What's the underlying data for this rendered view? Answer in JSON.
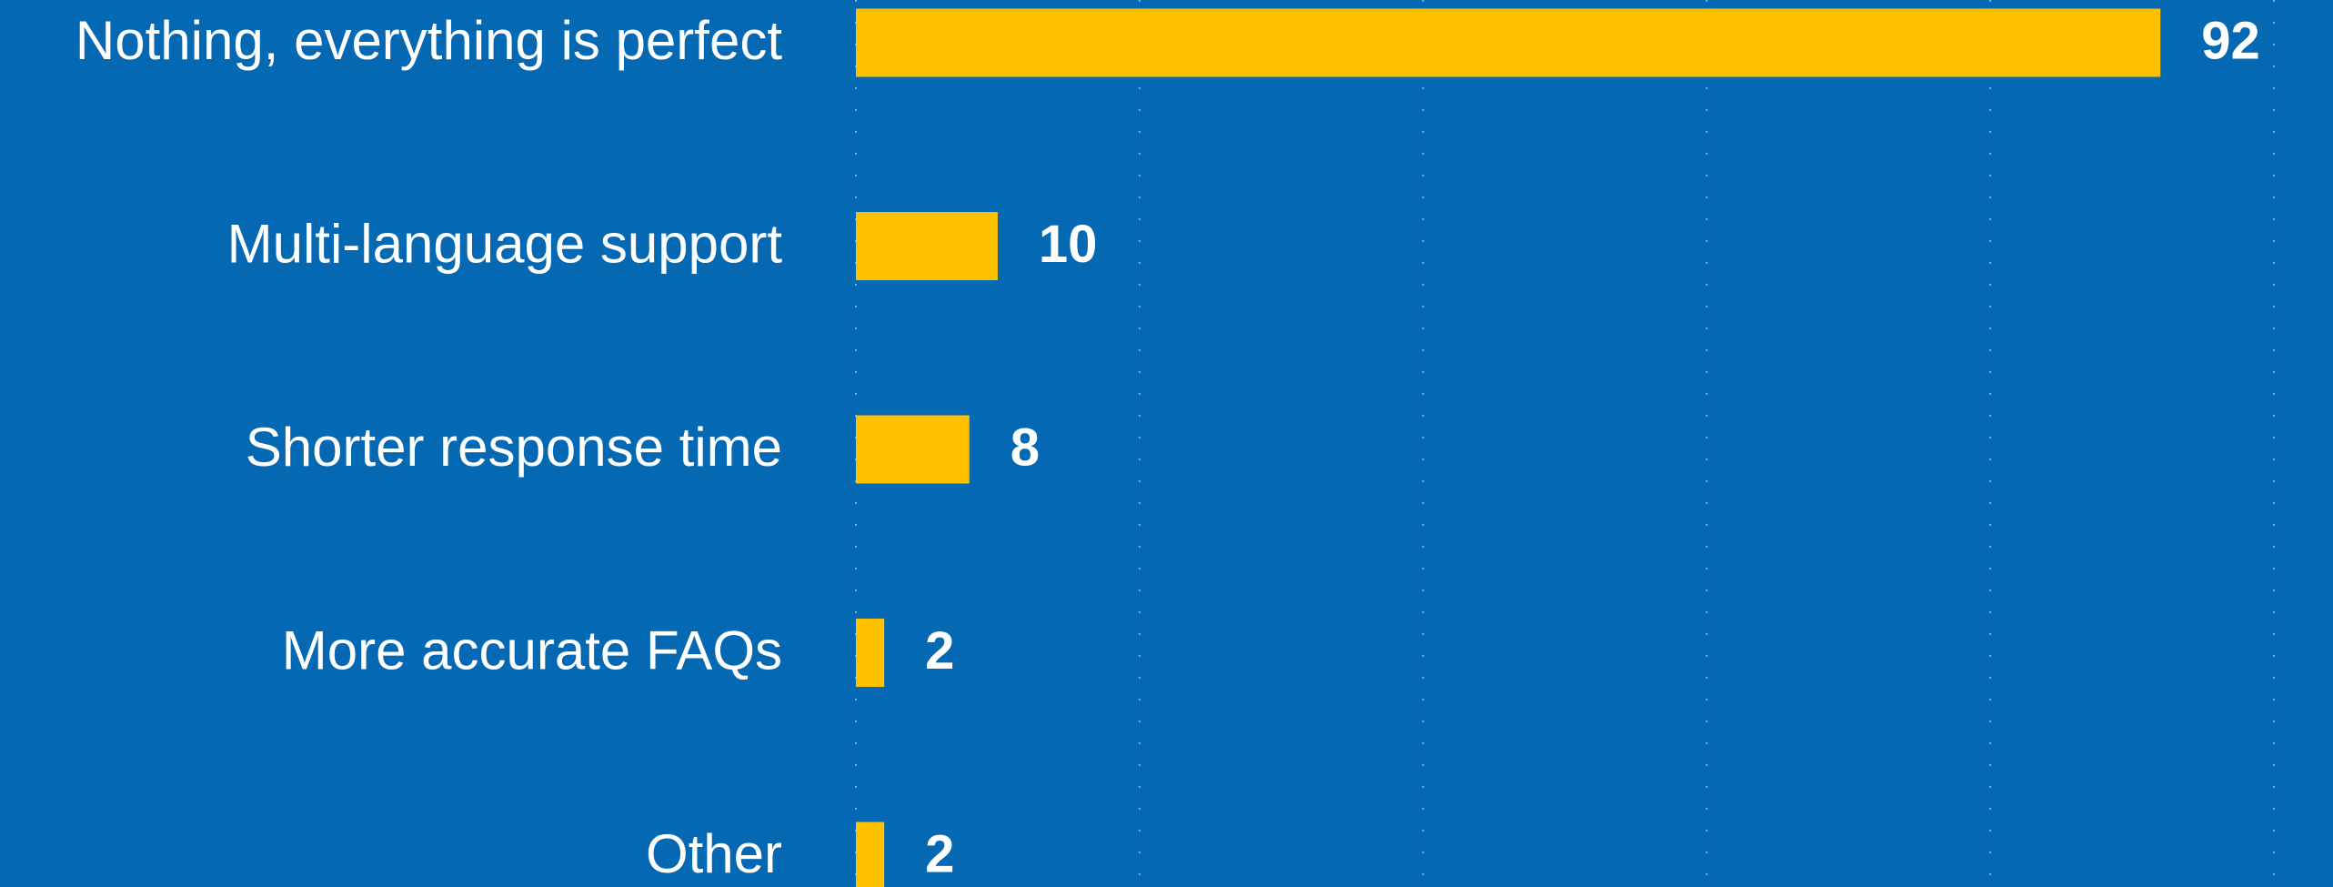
{
  "chart_data": {
    "type": "bar",
    "orientation": "horizontal",
    "categories": [
      "Nothing, everything is perfect",
      "Multi-language support",
      "Shorter response time",
      "More accurate FAQs",
      "Other"
    ],
    "values": [
      92,
      10,
      8,
      2,
      2
    ],
    "color": "#ffc000",
    "xlim": [
      0,
      100
    ],
    "xticks": [
      0,
      20,
      40,
      60,
      80,
      100
    ],
    "grid": true
  }
}
